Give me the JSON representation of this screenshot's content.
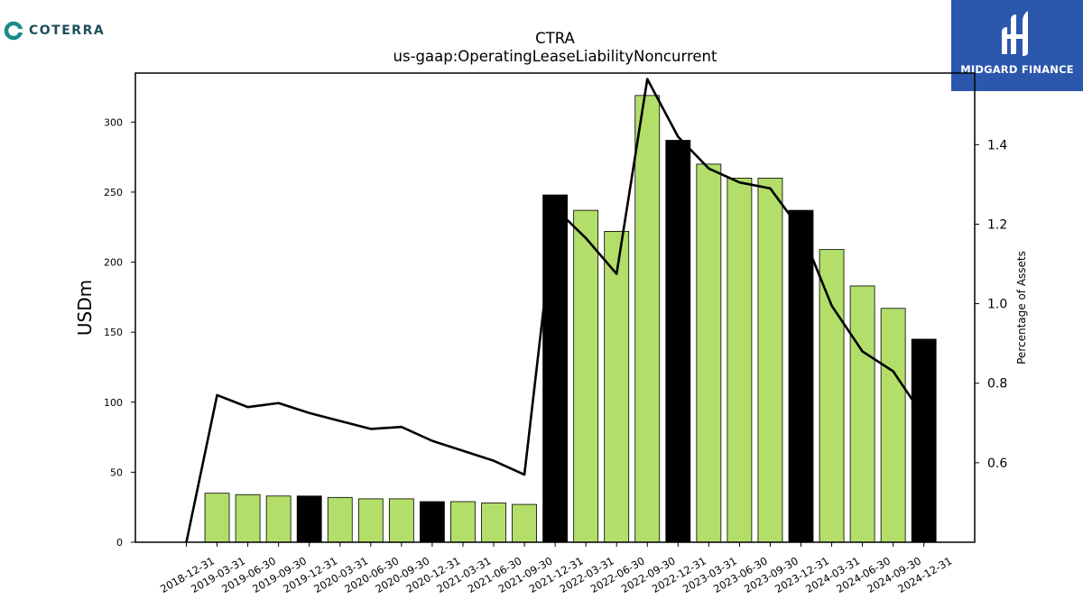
{
  "branding": {
    "left_logo_text": "COTERRA",
    "left_logo_color": "#1a8a8a",
    "right_logo_text": "MIDGARD FINANCE",
    "right_logo_bg": "#2b57ad"
  },
  "chart_data": {
    "type": "bar",
    "title": "CTRA",
    "subtitle": "us-gaap:OperatingLeaseLiabilityNoncurrent",
    "ylabel": "USDm",
    "y2label": "Percentage of Assets",
    "ylim": [
      0,
      335
    ],
    "y2lim": [
      0.4,
      1.58
    ],
    "yticks": [
      0,
      50,
      100,
      150,
      200,
      250,
      300
    ],
    "y2ticks": [
      0.6,
      0.8,
      1.0,
      1.2,
      1.4
    ],
    "y2tick_labels": [
      "0.6",
      "0.8",
      "1.0",
      "1.2",
      "1.4"
    ],
    "grid": false,
    "categories": [
      "2018-12-31",
      "2019-03-31",
      "2019-06-30",
      "2019-09-30",
      "2019-12-31",
      "2020-03-31",
      "2020-06-30",
      "2020-09-30",
      "2020-12-31",
      "2021-03-31",
      "2021-06-30",
      "2021-09-30",
      "2021-12-31",
      "2022-03-31",
      "2022-06-30",
      "2022-09-30",
      "2022-12-31",
      "2023-03-31",
      "2023-06-30",
      "2023-09-30",
      "2023-12-31",
      "2024-03-31",
      "2024-06-30",
      "2024-09-30",
      "2024-12-31"
    ],
    "series": [
      {
        "kind": "bar",
        "values": [
          0,
          35,
          34,
          33,
          33,
          32,
          31,
          31,
          29,
          29,
          28,
          27,
          248,
          237,
          222,
          319,
          287,
          270,
          260,
          260,
          237,
          209,
          183,
          167,
          145
        ],
        "colors": [
          "#b3de6a",
          "#b3de6a",
          "#b3de6a",
          "#b3de6a",
          "#000000",
          "#b3de6a",
          "#b3de6a",
          "#b3de6a",
          "#000000",
          "#b3de6a",
          "#b3de6a",
          "#b3de6a",
          "#000000",
          "#b3de6a",
          "#b3de6a",
          "#b3de6a",
          "#000000",
          "#b3de6a",
          "#b3de6a",
          "#b3de6a",
          "#000000",
          "#b3de6a",
          "#b3de6a",
          "#b3de6a",
          "#000000"
        ]
      },
      {
        "kind": "line",
        "axis": "right",
        "color": "#000000",
        "values": [
          0.4,
          0.77,
          0.74,
          0.75,
          0.725,
          0.705,
          0.685,
          0.69,
          0.655,
          0.63,
          0.605,
          0.57,
          1.24,
          1.165,
          1.075,
          1.565,
          1.42,
          1.34,
          1.305,
          1.29,
          1.185,
          0.995,
          0.88,
          0.83,
          0.715
        ]
      }
    ]
  }
}
